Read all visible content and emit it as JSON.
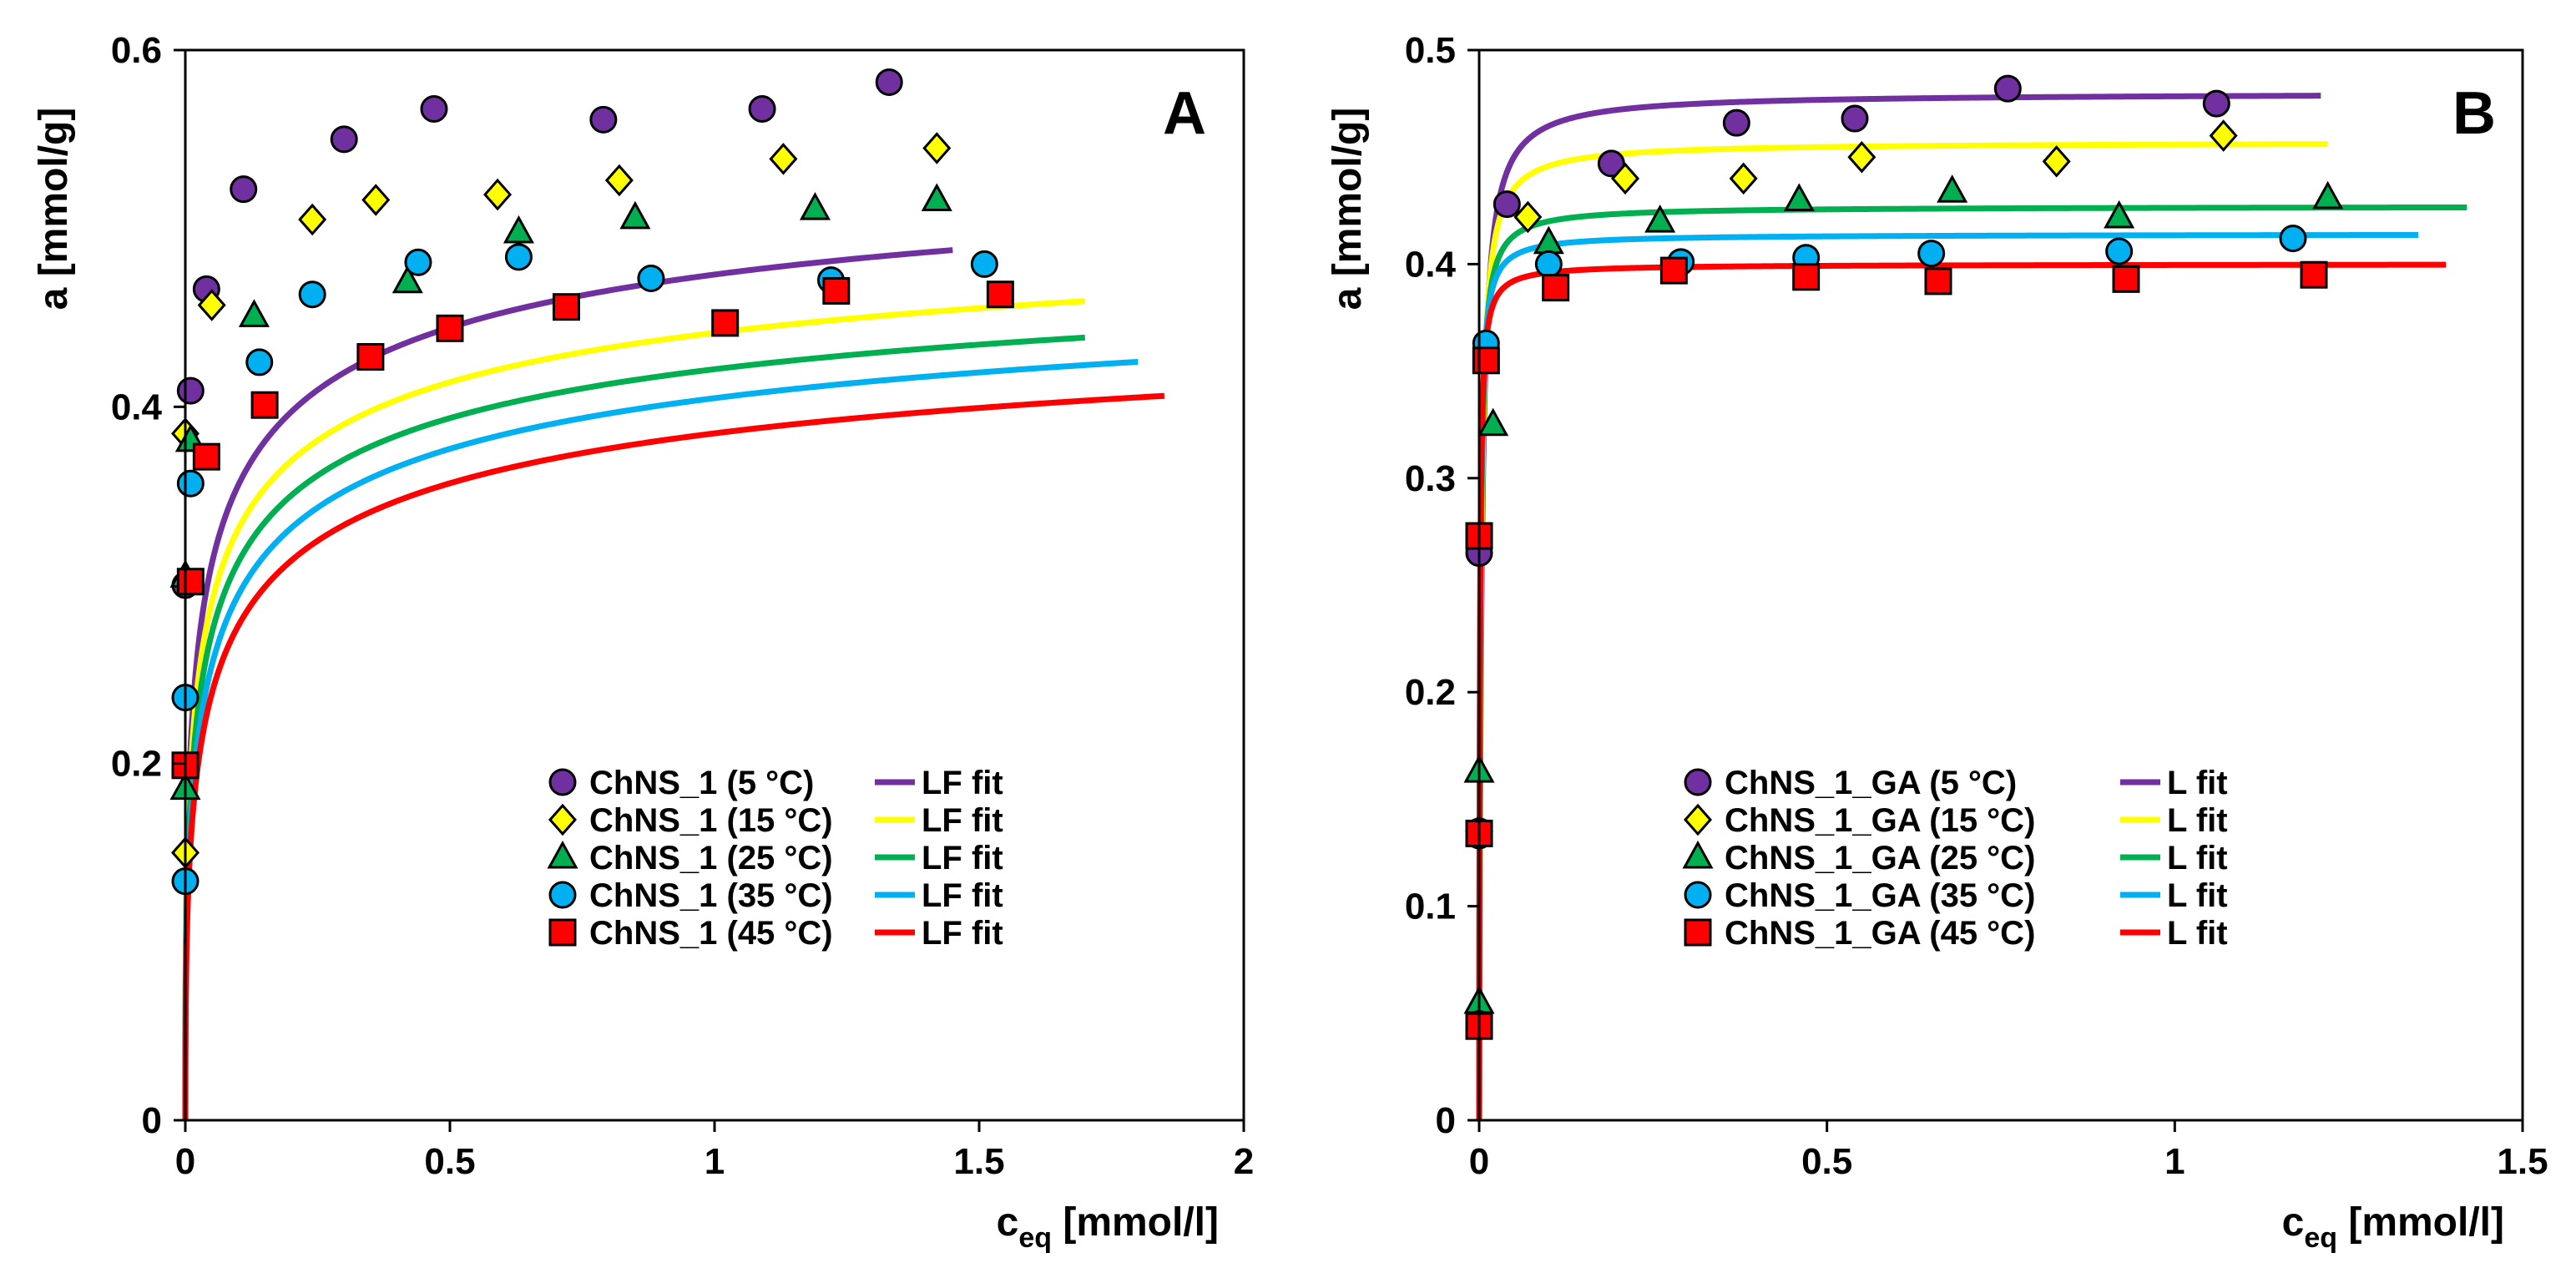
{
  "chart_data": [
    {
      "type": "scatter",
      "panel_label": "A",
      "title": "",
      "xlabel": {
        "main": "c",
        "sub": "eq",
        "unit": " [mmol/l]"
      },
      "ylabel": "a [mmol/g]",
      "xlim": [
        0,
        2
      ],
      "ylim": [
        0,
        0.6
      ],
      "xticks": [
        0,
        0.5,
        1,
        1.5,
        2
      ],
      "xtick_labels": [
        "0",
        "0.5",
        "1",
        "1.5",
        "2"
      ],
      "yticks": [
        0,
        0.2,
        0.4,
        0.6
      ],
      "ytick_labels": [
        "0",
        "0.2",
        "0.4",
        "0.6"
      ],
      "grid": false,
      "legend_position": "bottom-right",
      "series": [
        {
          "name": "ChNS_1 (5 °C)",
          "fit_name": "LF fit",
          "marker": "circle",
          "color": "#7030A0",
          "line_color": "#7030A0",
          "x": [
            0.0,
            0.01,
            0.04,
            0.11,
            0.3,
            0.47,
            0.79,
            1.09,
            1.33
          ],
          "y": [
            0.3,
            0.409,
            0.466,
            0.522,
            0.55,
            0.567,
            0.561,
            0.567,
            0.582
          ],
          "fit": {
            "qm": 0.58,
            "b": 28,
            "n": 0.45,
            "xmax": 1.45
          }
        },
        {
          "name": "ChNS_1 (15 °C)",
          "fit_name": "LF fit",
          "marker": "diamond",
          "color": "#FFFF00",
          "line_color": "#FFFF00",
          "x": [
            0.0,
            0.0,
            0.05,
            0.24,
            0.36,
            0.59,
            0.82,
            1.13,
            1.42
          ],
          "y": [
            0.15,
            0.385,
            0.457,
            0.505,
            0.516,
            0.519,
            0.527,
            0.539,
            0.545
          ],
          "fit": {
            "qm": 0.54,
            "b": 28,
            "n": 0.45,
            "xmax": 1.7
          }
        },
        {
          "name": "ChNS_1 (25 °C)",
          "fit_name": "LF fit",
          "marker": "triangle",
          "color": "#00B050",
          "line_color": "#00B050",
          "x": [
            0.0,
            0.0,
            0.01,
            0.13,
            0.42,
            0.63,
            0.85,
            1.19,
            1.42
          ],
          "y": [
            0.186,
            0.305,
            0.381,
            0.451,
            0.47,
            0.498,
            0.506,
            0.511,
            0.516
          ],
          "fit": {
            "qm": 0.52,
            "b": 25,
            "n": 0.45,
            "xmax": 1.7
          }
        },
        {
          "name": "ChNS_1 (35 °C)",
          "fit_name": "LF fit",
          "marker": "circle",
          "color": "#00B0F0",
          "line_color": "#00B0F0",
          "x": [
            0.0,
            0.0,
            0.01,
            0.14,
            0.24,
            0.44,
            0.63,
            0.88,
            1.22,
            1.51
          ],
          "y": [
            0.134,
            0.237,
            0.357,
            0.425,
            0.463,
            0.481,
            0.484,
            0.472,
            0.471,
            0.48
          ],
          "fit": {
            "qm": 0.51,
            "b": 20,
            "n": 0.45,
            "xmax": 1.8
          }
        },
        {
          "name": "ChNS_1 (45 °C)",
          "fit_name": "LF fit",
          "marker": "square",
          "color": "#FF0000",
          "line_color": "#FF0000",
          "x": [
            0.0,
            0.01,
            0.04,
            0.15,
            0.35,
            0.5,
            0.72,
            1.02,
            1.23,
            1.54
          ],
          "y": [
            0.199,
            0.302,
            0.372,
            0.401,
            0.428,
            0.444,
            0.456,
            0.447,
            0.465,
            0.463
          ],
          "fit": {
            "qm": 0.49,
            "b": 18,
            "n": 0.45,
            "xmax": 1.85
          }
        }
      ]
    },
    {
      "type": "scatter",
      "panel_label": "B",
      "title": "",
      "xlabel": {
        "main": "c",
        "sub": "eq",
        "unit": " [mmol/l]"
      },
      "ylabel": "a [mmol/g]",
      "xlim": [
        0,
        1.5
      ],
      "ylim": [
        0,
        0.5
      ],
      "xticks": [
        0,
        0.5,
        1,
        1.5
      ],
      "xtick_labels": [
        "0",
        "0.5",
        "1",
        "1.5"
      ],
      "yticks": [
        0,
        0.1,
        0.2,
        0.3,
        0.4,
        0.5
      ],
      "ytick_labels": [
        "0",
        "0.1",
        "0.2",
        "0.3",
        "0.4",
        "0.5"
      ],
      "grid": false,
      "legend_position": "bottom-right",
      "series": [
        {
          "name": "ChNS_1_GA (5 °C)",
          "fit_name": "L fit",
          "marker": "circle",
          "color": "#7030A0",
          "line_color": "#7030A0",
          "x": [
            0.0,
            0.0,
            0.04,
            0.19,
            0.37,
            0.54,
            0.76,
            1.06
          ],
          "y": [
            0.133,
            0.265,
            0.428,
            0.447,
            0.466,
            0.468,
            0.482,
            0.475
          ],
          "fit": {
            "qm": 0.48,
            "b": 300,
            "xmax": 1.21
          }
        },
        {
          "name": "ChNS_1_GA (15 °C)",
          "fit_name": "L fit",
          "marker": "diamond",
          "color": "#FFFF00",
          "line_color": "#FFFF00",
          "x": [
            0.0,
            0.07,
            0.21,
            0.38,
            0.55,
            0.83,
            1.07
          ],
          "y": [
            0.135,
            0.422,
            0.44,
            0.44,
            0.45,
            0.448,
            0.46
          ],
          "fit": {
            "qm": 0.457,
            "b": 400,
            "xmax": 1.22
          }
        },
        {
          "name": "ChNS_1_GA (25 °C)",
          "fit_name": "L fit",
          "marker": "triangle",
          "color": "#00B050",
          "line_color": "#00B050",
          "x": [
            0.0,
            0.0,
            0.02,
            0.1,
            0.26,
            0.46,
            0.68,
            0.92,
            1.22
          ],
          "y": [
            0.055,
            0.163,
            0.325,
            0.41,
            0.42,
            0.43,
            0.434,
            0.422,
            0.431
          ],
          "fit": {
            "qm": 0.427,
            "b": 600,
            "xmax": 1.42
          }
        },
        {
          "name": "ChNS_1_GA (35 °C)",
          "fit_name": "L fit",
          "marker": "circle",
          "color": "#00B0F0",
          "line_color": "#00B0F0",
          "x": [
            0.0,
            0.0,
            0.01,
            0.1,
            0.29,
            0.47,
            0.65,
            0.92,
            1.17
          ],
          "y": [
            0.045,
            0.135,
            0.363,
            0.4,
            0.401,
            0.403,
            0.405,
            0.406,
            0.412
          ],
          "fit": {
            "qm": 0.414,
            "b": 800,
            "xmax": 1.35
          }
        },
        {
          "name": "ChNS_1_GA (45 °C)",
          "fit_name": "L fit",
          "marker": "square",
          "color": "#FF0000",
          "line_color": "#FF0000",
          "x": [
            0.0,
            0.0,
            0.0,
            0.01,
            0.11,
            0.28,
            0.47,
            0.66,
            0.93,
            1.2
          ],
          "y": [
            0.044,
            0.134,
            0.273,
            0.355,
            0.389,
            0.397,
            0.394,
            0.392,
            0.393,
            0.395
          ],
          "fit": {
            "qm": 0.4,
            "b": 1000,
            "xmax": 1.39
          }
        }
      ]
    }
  ]
}
